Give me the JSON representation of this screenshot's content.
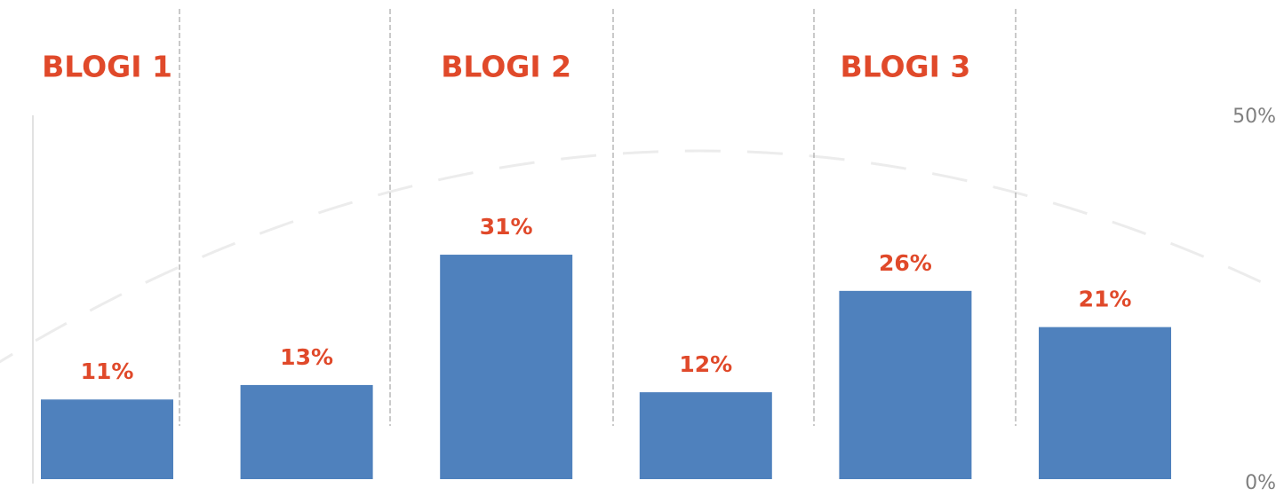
{
  "chart_data": {
    "type": "bar",
    "values": [
      11,
      13,
      31,
      12,
      26,
      21
    ],
    "value_labels": [
      "11%",
      "13%",
      "31%",
      "12%",
      "26%",
      "21%"
    ],
    "color": "#4f81bd",
    "annotations": [
      "BLOGI 1",
      "BLOGI 2",
      "BLOGI 3"
    ],
    "ylim": [
      0,
      50
    ],
    "yticks": [
      {
        "value": 0,
        "label": "0%"
      },
      {
        "value": 50,
        "label": "50%"
      }
    ],
    "grid": false
  }
}
